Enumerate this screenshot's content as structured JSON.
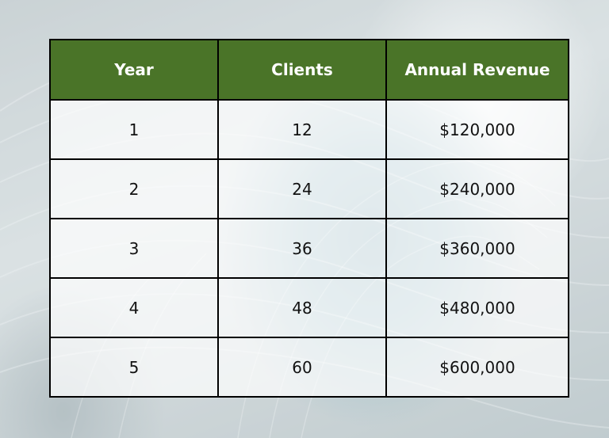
{
  "colors": {
    "header_background": "#4a7428",
    "header_text": "#ffffff",
    "border": "#000000",
    "cell_text": "#111111"
  },
  "chart_data": {
    "type": "table",
    "columns": [
      "Year",
      "Clients",
      "Annual Revenue"
    ],
    "rows": [
      [
        "1",
        "12",
        "$120,000"
      ],
      [
        "2",
        "24",
        "$240,000"
      ],
      [
        "3",
        "36",
        "$360,000"
      ],
      [
        "4",
        "48",
        "$480,000"
      ],
      [
        "5",
        "60",
        "$600,000"
      ]
    ]
  }
}
